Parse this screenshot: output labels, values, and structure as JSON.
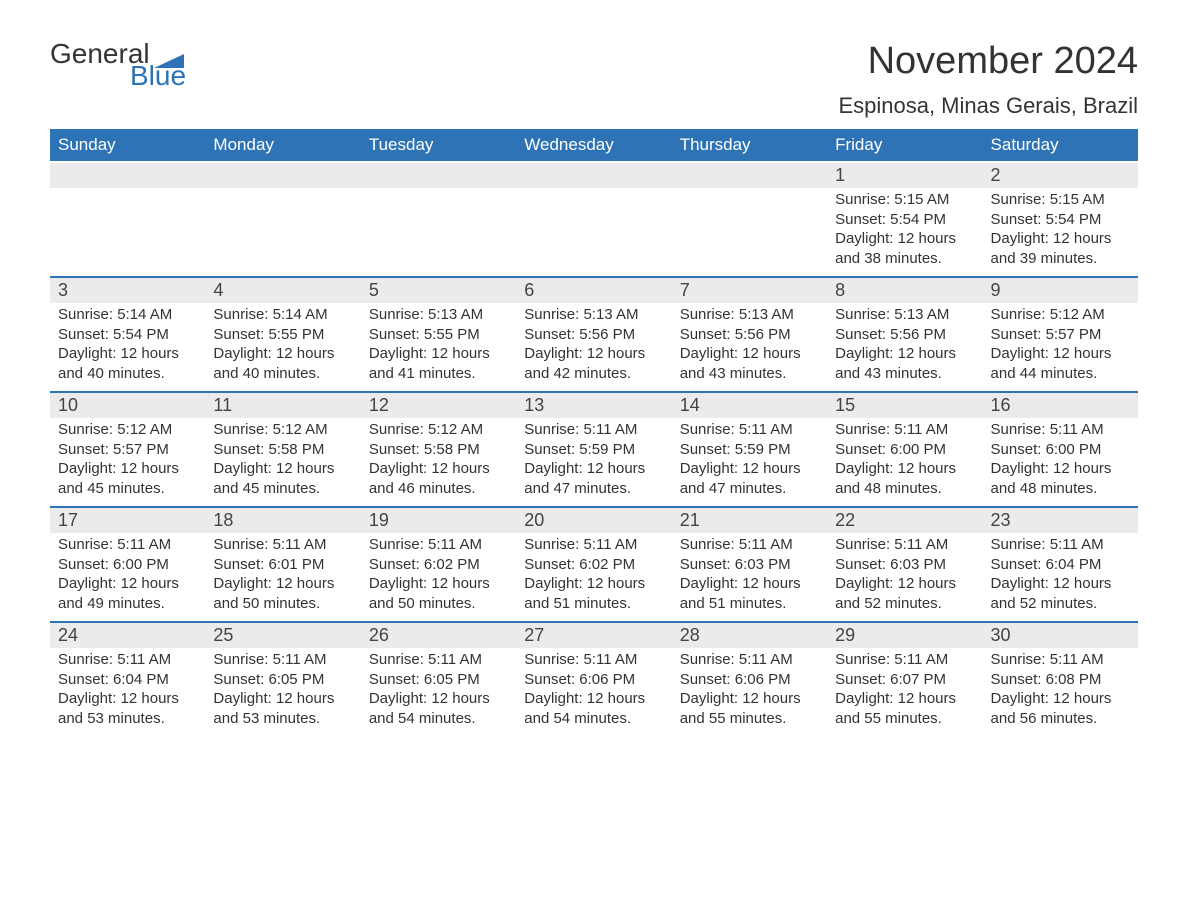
{
  "logo": {
    "text_general": "General",
    "text_blue": "Blue",
    "flag_color": "#2d73b5"
  },
  "title": "November 2024",
  "location": "Espinosa, Minas Gerais, Brazil",
  "colors": {
    "header_bg": "#2d73b5",
    "header_text": "#ffffff",
    "daynum_bg": "#ebebeb",
    "text": "#333333",
    "rule": "#2d73b5",
    "background": "#ffffff"
  },
  "typography": {
    "title_fontsize": 38,
    "location_fontsize": 22,
    "weekday_fontsize": 17,
    "daynum_fontsize": 18,
    "body_fontsize": 15
  },
  "weekdays": [
    "Sunday",
    "Monday",
    "Tuesday",
    "Wednesday",
    "Thursday",
    "Friday",
    "Saturday"
  ],
  "weeks": [
    [
      null,
      null,
      null,
      null,
      null,
      {
        "n": "1",
        "sr": "5:15 AM",
        "ss": "5:54 PM",
        "dl": "12 hours and 38 minutes."
      },
      {
        "n": "2",
        "sr": "5:15 AM",
        "ss": "5:54 PM",
        "dl": "12 hours and 39 minutes."
      }
    ],
    [
      {
        "n": "3",
        "sr": "5:14 AM",
        "ss": "5:54 PM",
        "dl": "12 hours and 40 minutes."
      },
      {
        "n": "4",
        "sr": "5:14 AM",
        "ss": "5:55 PM",
        "dl": "12 hours and 40 minutes."
      },
      {
        "n": "5",
        "sr": "5:13 AM",
        "ss": "5:55 PM",
        "dl": "12 hours and 41 minutes."
      },
      {
        "n": "6",
        "sr": "5:13 AM",
        "ss": "5:56 PM",
        "dl": "12 hours and 42 minutes."
      },
      {
        "n": "7",
        "sr": "5:13 AM",
        "ss": "5:56 PM",
        "dl": "12 hours and 43 minutes."
      },
      {
        "n": "8",
        "sr": "5:13 AM",
        "ss": "5:56 PM",
        "dl": "12 hours and 43 minutes."
      },
      {
        "n": "9",
        "sr": "5:12 AM",
        "ss": "5:57 PM",
        "dl": "12 hours and 44 minutes."
      }
    ],
    [
      {
        "n": "10",
        "sr": "5:12 AM",
        "ss": "5:57 PM",
        "dl": "12 hours and 45 minutes."
      },
      {
        "n": "11",
        "sr": "5:12 AM",
        "ss": "5:58 PM",
        "dl": "12 hours and 45 minutes."
      },
      {
        "n": "12",
        "sr": "5:12 AM",
        "ss": "5:58 PM",
        "dl": "12 hours and 46 minutes."
      },
      {
        "n": "13",
        "sr": "5:11 AM",
        "ss": "5:59 PM",
        "dl": "12 hours and 47 minutes."
      },
      {
        "n": "14",
        "sr": "5:11 AM",
        "ss": "5:59 PM",
        "dl": "12 hours and 47 minutes."
      },
      {
        "n": "15",
        "sr": "5:11 AM",
        "ss": "6:00 PM",
        "dl": "12 hours and 48 minutes."
      },
      {
        "n": "16",
        "sr": "5:11 AM",
        "ss": "6:00 PM",
        "dl": "12 hours and 48 minutes."
      }
    ],
    [
      {
        "n": "17",
        "sr": "5:11 AM",
        "ss": "6:00 PM",
        "dl": "12 hours and 49 minutes."
      },
      {
        "n": "18",
        "sr": "5:11 AM",
        "ss": "6:01 PM",
        "dl": "12 hours and 50 minutes."
      },
      {
        "n": "19",
        "sr": "5:11 AM",
        "ss": "6:02 PM",
        "dl": "12 hours and 50 minutes."
      },
      {
        "n": "20",
        "sr": "5:11 AM",
        "ss": "6:02 PM",
        "dl": "12 hours and 51 minutes."
      },
      {
        "n": "21",
        "sr": "5:11 AM",
        "ss": "6:03 PM",
        "dl": "12 hours and 51 minutes."
      },
      {
        "n": "22",
        "sr": "5:11 AM",
        "ss": "6:03 PM",
        "dl": "12 hours and 52 minutes."
      },
      {
        "n": "23",
        "sr": "5:11 AM",
        "ss": "6:04 PM",
        "dl": "12 hours and 52 minutes."
      }
    ],
    [
      {
        "n": "24",
        "sr": "5:11 AM",
        "ss": "6:04 PM",
        "dl": "12 hours and 53 minutes."
      },
      {
        "n": "25",
        "sr": "5:11 AM",
        "ss": "6:05 PM",
        "dl": "12 hours and 53 minutes."
      },
      {
        "n": "26",
        "sr": "5:11 AM",
        "ss": "6:05 PM",
        "dl": "12 hours and 54 minutes."
      },
      {
        "n": "27",
        "sr": "5:11 AM",
        "ss": "6:06 PM",
        "dl": "12 hours and 54 minutes."
      },
      {
        "n": "28",
        "sr": "5:11 AM",
        "ss": "6:06 PM",
        "dl": "12 hours and 55 minutes."
      },
      {
        "n": "29",
        "sr": "5:11 AM",
        "ss": "6:07 PM",
        "dl": "12 hours and 55 minutes."
      },
      {
        "n": "30",
        "sr": "5:11 AM",
        "ss": "6:08 PM",
        "dl": "12 hours and 56 minutes."
      }
    ]
  ],
  "labels": {
    "sunrise": "Sunrise: ",
    "sunset": "Sunset: ",
    "daylight": "Daylight: "
  }
}
